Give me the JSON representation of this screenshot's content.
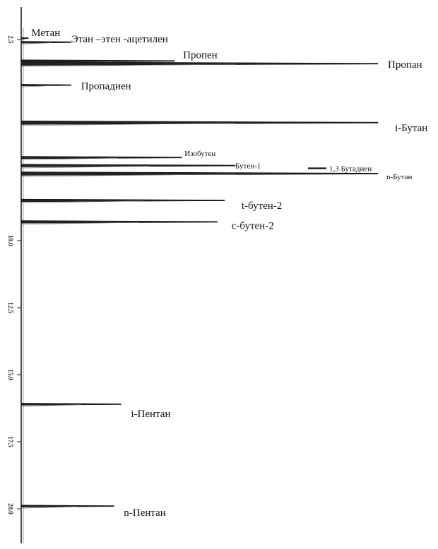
{
  "chart_data": {
    "type": "line",
    "title": "",
    "xlabel": "",
    "ylabel": "",
    "time_axis": {
      "orientation": "vertical",
      "ticks": [
        {
          "value": 2.5,
          "label": "2.5"
        },
        {
          "value": 10.0,
          "label": "10.0"
        },
        {
          "value": 12.5,
          "label": "12.5"
        },
        {
          "value": 15.0,
          "label": "15.0"
        },
        {
          "value": 17.5,
          "label": "17.5"
        },
        {
          "value": 20.0,
          "label": "20.0"
        }
      ]
    },
    "peaks": [
      {
        "name": "Метан",
        "label": "Метан",
        "time": 2.45,
        "height": 0.02
      },
      {
        "name": "Этан –этен -ацетилен",
        "label": "Этан –этен -ацетилен",
        "time": 2.6,
        "height": 0.14
      },
      {
        "name": "Пропен",
        "label": "Пропен",
        "time": 3.3,
        "height": 0.43
      },
      {
        "name": "Пропан",
        "label": "Пропан",
        "time": 3.4,
        "height": 1.0
      },
      {
        "name": "Пропадиен",
        "label": "Пропадиен",
        "time": 4.2,
        "height": 0.14
      },
      {
        "name": "i-Бутан",
        "label": "i-Бутан",
        "time": 5.6,
        "height": 1.0
      },
      {
        "name": "Изобутен",
        "label": "Изобутен",
        "time": 6.9,
        "height": 0.45
      },
      {
        "name": "Бутен-1",
        "label": "Бутен-1",
        "time": 7.2,
        "height": 0.6
      },
      {
        "name": "1,3 Бутадиен",
        "label": "1,3 Бутадиен",
        "time": 7.25,
        "height": 0.0
      },
      {
        "name": "n-Бутан",
        "label": "n-Бутан",
        "time": 7.5,
        "height": 1.0
      },
      {
        "name": "t-бутен-2",
        "label": "t-бутен-2",
        "time": 8.5,
        "height": 0.57
      },
      {
        "name": "с-бутен-2",
        "label": "с-бутен-2",
        "time": 9.3,
        "height": 0.55
      },
      {
        "name": "i-Пентан",
        "label": "i-Пентан",
        "time": 16.1,
        "height": 0.28
      },
      {
        "name": "n-Пентан",
        "label": "n-Пентан",
        "time": 19.9,
        "height": 0.26
      }
    ],
    "grid": false,
    "legend": "none"
  }
}
